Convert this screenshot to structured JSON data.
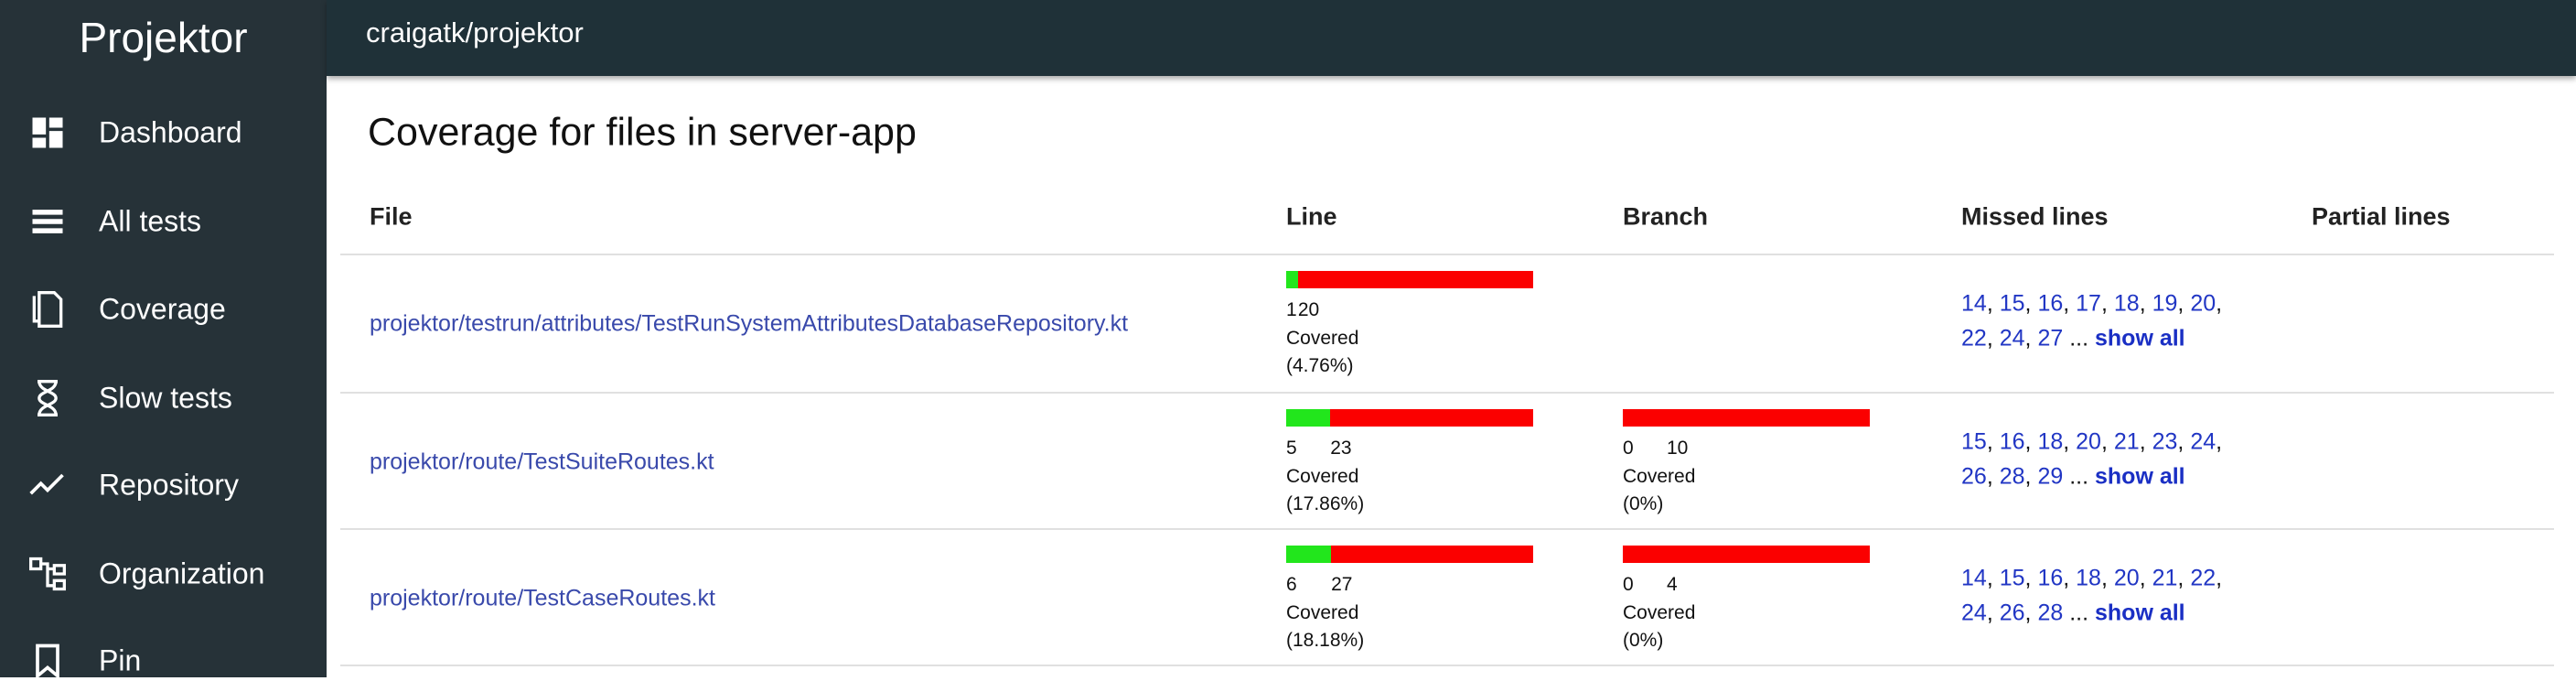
{
  "sidebar": {
    "brand": "Projektor",
    "items": [
      "Dashboard",
      "All tests",
      "Coverage",
      "Slow tests",
      "Repository",
      "Organization",
      "Pin"
    ]
  },
  "header": {
    "title": "craigatk/projektor"
  },
  "heading": "Coverage for files in server-app",
  "table": {
    "columns": [
      "File",
      "Line",
      "Branch",
      "Missed lines",
      "Partial lines"
    ],
    "covered_label": "Covered",
    "separator": ",",
    "ellipsis": "...",
    "show_all": "show all",
    "rows": [
      {
        "file": "projektor/testrun/attributes/TestRunSystemAttributesDatabaseRepository.kt",
        "line": {
          "covered": 1,
          "missed": 20,
          "percent": "(4.76%)"
        },
        "branch": null,
        "missed_lines": [
          14,
          15,
          16,
          17,
          18,
          19,
          20,
          22,
          24,
          27
        ]
      },
      {
        "file": "projektor/route/TestSuiteRoutes.kt",
        "line": {
          "covered": 5,
          "missed": 23,
          "percent": "(17.86%)"
        },
        "branch": {
          "covered": 0,
          "missed": 10,
          "percent": "(0%)"
        },
        "missed_lines": [
          15,
          16,
          18,
          20,
          21,
          23,
          24,
          26,
          28,
          29
        ]
      },
      {
        "file": "projektor/route/TestCaseRoutes.kt",
        "line": {
          "covered": 6,
          "missed": 27,
          "percent": "(18.18%)"
        },
        "branch": {
          "covered": 0,
          "missed": 4,
          "percent": "(0%)"
        },
        "missed_lines": [
          14,
          15,
          16,
          18,
          20,
          21,
          22,
          24,
          26,
          28
        ]
      }
    ]
  }
}
